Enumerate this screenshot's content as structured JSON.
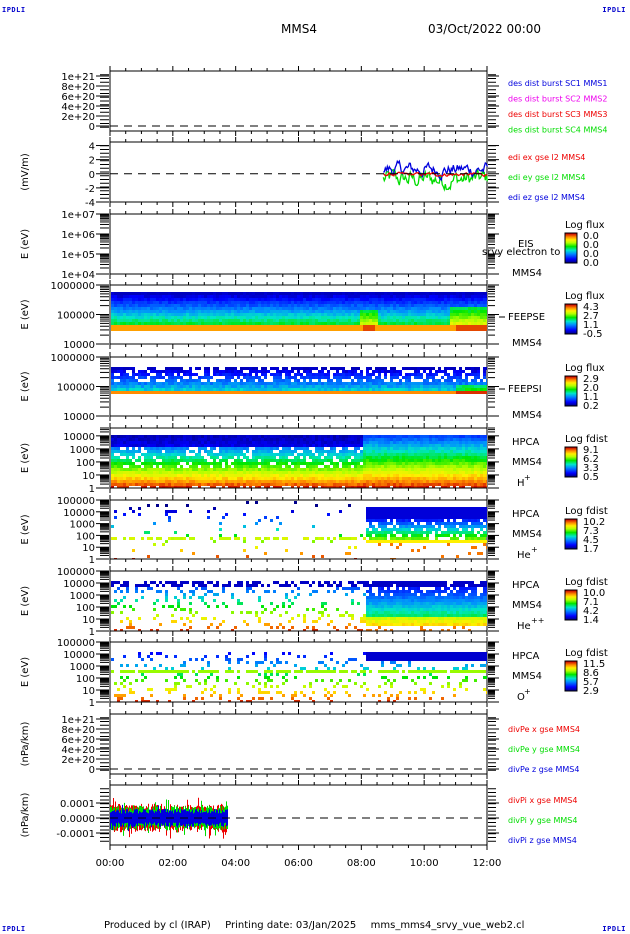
{
  "header": {
    "corner_label": "IPDLI",
    "spacecraft": "MMS4",
    "date_time": "03/Oct/2022 00:00"
  },
  "footer": {
    "produced_by": "Produced by cl (IRAP)",
    "printing_date": "Printing date: 03/Jan/2025",
    "script_name": "mms_mms4_srvy_vue_web2.cl"
  },
  "colors": {
    "blue": "#0000dd",
    "magenta": "#ee00ee",
    "red": "#ee0000",
    "green": "#00dd00"
  },
  "chart_data": [
    {
      "type": "line",
      "name": "des-dist-burst",
      "ylabel": "",
      "yticks": [
        "1e+21",
        "8e+20",
        "6e+20",
        "4e+20",
        "2e+20",
        "0"
      ],
      "ylim": [
        0,
        1.1e+21
      ],
      "zero_line": true,
      "legend": [
        {
          "label": "des dist burst SC1 MMS1",
          "color": "#0000dd"
        },
        {
          "label": "des dist burst SC2 MMS2",
          "color": "#ee00ee"
        },
        {
          "label": "des dist burst SC3 MMS3",
          "color": "#ee0000"
        },
        {
          "label": "des dist burst SC4 MMS4",
          "color": "#00dd00"
        }
      ],
      "series": []
    },
    {
      "type": "line",
      "name": "edi-e-gse",
      "ylabel": "(mV/m)",
      "yticks": [
        "4",
        "2",
        "0",
        "-2",
        "-4"
      ],
      "ylim": [
        -4,
        4.5
      ],
      "zero_line": true,
      "legend": [
        {
          "label": "edi ex gse l2 MMS4",
          "color": "#ee0000"
        },
        {
          "label": "edi ey gse l2 MMS4",
          "color": "#00dd00"
        },
        {
          "label": "edi ez gse l2 MMS4",
          "color": "#0000dd"
        }
      ],
      "series": [
        {
          "name": "edi ex gse l2 MMS4",
          "x_range_hours": [
            8.7,
            12.0
          ],
          "mean": -0.1,
          "spread": 0.3
        },
        {
          "name": "edi ey gse l2 MMS4",
          "x_range_hours": [
            8.7,
            12.0
          ],
          "mean": -0.8,
          "spread": 1.6
        },
        {
          "name": "edi ez gse l2 MMS4",
          "x_range_hours": [
            8.7,
            12.0
          ],
          "mean": 0.6,
          "spread": 1.2
        }
      ]
    },
    {
      "type": "heatmap",
      "name": "eis",
      "ylabel": "E (eV)",
      "yticks": [
        "1e+07",
        "1e+06",
        "1e+05",
        "1e+04"
      ],
      "ylog": true,
      "ylim": [
        10000.0,
        10000000.0
      ],
      "side_labels": [
        "EIS",
        "srvy electron to",
        "MMS4"
      ],
      "colorbar": {
        "title": "Log flux",
        "ticks": [
          "0.0",
          "0.0",
          "0.0",
          "0.0"
        ]
      },
      "empty": true
    },
    {
      "type": "heatmap",
      "name": "feeps-e",
      "ylabel": "E (eV)",
      "yticks": [
        "1000000",
        "100000",
        "10000"
      ],
      "ylog": true,
      "ylim": [
        10000.0,
        1000000.0
      ],
      "side_labels": [
        "FEEPSE",
        "MMS4"
      ],
      "colorbar": {
        "title": "Log flux",
        "ticks": [
          "4.3",
          "2.7",
          "1.1",
          "-0.5"
        ]
      },
      "pattern": "feepse"
    },
    {
      "type": "heatmap",
      "name": "feeps-i",
      "ylabel": "E (eV)",
      "yticks": [
        "1000000",
        "100000",
        "10000"
      ],
      "ylog": true,
      "ylim": [
        10000.0,
        1000000.0
      ],
      "side_labels": [
        "FEEPSI",
        "MMS4"
      ],
      "colorbar": {
        "title": "Log flux",
        "ticks": [
          "2.9",
          "2.0",
          "1.1",
          "0.2"
        ]
      },
      "pattern": "feepsi"
    },
    {
      "type": "heatmap",
      "name": "hpca-h",
      "ylabel": "E (eV)",
      "yticks": [
        "10000",
        "1000",
        "100",
        "10",
        "1"
      ],
      "ylog": true,
      "ylim": [
        1,
        40000
      ],
      "side_labels": [
        "HPCA",
        "MMS4",
        "H",
        "+"
      ],
      "colorbar": {
        "title": "Log fdist",
        "ticks": [
          "9.1",
          "6.2",
          "3.3",
          "0.5"
        ]
      },
      "pattern": "hplus"
    },
    {
      "type": "heatmap",
      "name": "hpca-he",
      "ylabel": "E (eV)",
      "yticks": [
        "100000",
        "10000",
        "1000",
        "100",
        "10",
        "1"
      ],
      "ylog": true,
      "ylim": [
        1,
        100000
      ],
      "side_labels": [
        "HPCA",
        "MMS4",
        "He",
        "+"
      ],
      "colorbar": {
        "title": "Log fdist",
        "ticks": [
          "10.2",
          "7.3",
          "4.5",
          "1.7"
        ]
      },
      "pattern": "heplus"
    },
    {
      "type": "heatmap",
      "name": "hpca-hepp",
      "ylabel": "E (eV)",
      "yticks": [
        "100000",
        "10000",
        "1000",
        "100",
        "10",
        "1"
      ],
      "ylog": true,
      "ylim": [
        1,
        100000
      ],
      "side_labels": [
        "HPCA",
        "MMS4",
        "He",
        "++"
      ],
      "colorbar": {
        "title": "Log fdist",
        "ticks": [
          "10.0",
          "7.1",
          "4.2",
          "1.4"
        ]
      },
      "pattern": "heplusplus"
    },
    {
      "type": "heatmap",
      "name": "hpca-o",
      "ylabel": "E (eV)",
      "yticks": [
        "100000",
        "10000",
        "1000",
        "100",
        "10",
        "1"
      ],
      "ylog": true,
      "ylim": [
        1,
        100000
      ],
      "side_labels": [
        "HPCA",
        "MMS4",
        "O",
        "+"
      ],
      "colorbar": {
        "title": "Log fdist",
        "ticks": [
          "11.5",
          "8.6",
          "5.7",
          "2.9"
        ]
      },
      "pattern": "oplus"
    },
    {
      "type": "line",
      "name": "divpe",
      "ylabel": "(nPa/km)",
      "yticks": [
        "1e+21",
        "8e+20",
        "6e+20",
        "4e+20",
        "2e+20",
        "0"
      ],
      "ylim": [
        0,
        1.1e+21
      ],
      "zero_line": true,
      "legend": [
        {
          "label": "divPe x gse MMS4",
          "color": "#ee0000"
        },
        {
          "label": "divPe y gse MMS4",
          "color": "#00dd00"
        },
        {
          "label": "divPe z gse MMS4",
          "color": "#0000dd"
        }
      ],
      "series": []
    },
    {
      "type": "line",
      "name": "divpi",
      "ylabel": "(nPa/km)",
      "yticks": [
        "0.0001",
        "0.0000",
        "-0.0001"
      ],
      "ytick_values": [
        0.0001,
        0.0,
        -0.0001
      ],
      "ylim": [
        -0.00018,
        0.00022
      ],
      "zero_line": true,
      "legend": [
        {
          "label": "divPi x gse MMS4",
          "color": "#ee0000"
        },
        {
          "label": "divPi y gse MMS4",
          "color": "#00dd00"
        },
        {
          "label": "divPi z gse MMS4",
          "color": "#0000dd"
        }
      ],
      "series": [
        {
          "name": "divPi x gse MMS4",
          "x_range_hours": [
            0.0,
            3.75
          ],
          "mean": 0.0,
          "spread": 8e-05
        },
        {
          "name": "divPi y gse MMS4",
          "x_range_hours": [
            0.0,
            3.75
          ],
          "mean": 0.0,
          "spread": 7e-05
        },
        {
          "name": "divPi z gse MMS4",
          "x_range_hours": [
            0.0,
            3.75
          ],
          "mean": 0.0,
          "spread": 5e-05
        }
      ]
    }
  ],
  "x_axis": {
    "ticks": [
      "00:00",
      "02:00",
      "04:00",
      "06:00",
      "08:00",
      "10:00",
      "12:00"
    ],
    "xlim_hours": [
      0,
      12
    ]
  }
}
